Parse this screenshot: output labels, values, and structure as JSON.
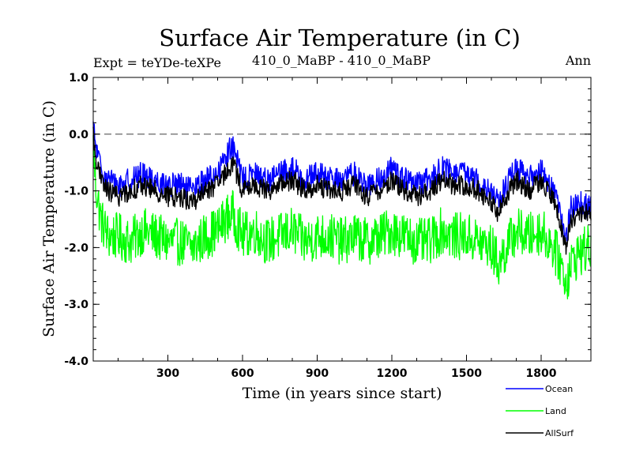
{
  "chart_data": {
    "type": "line",
    "title": "Surface Air Temperature (in C)",
    "subtitle_left": "Expt = teYDe-teXPe",
    "subtitle_center": "410_0_MaBP - 410_0_MaBP",
    "subtitle_right": "Ann",
    "xlabel": "Time (in years since start)",
    "ylabel": "Surface Air Temperature (in C)",
    "xlim": [
      0,
      2000
    ],
    "ylim": [
      -4.0,
      1.0
    ],
    "x_ticks": [
      300,
      600,
      900,
      1200,
      1500,
      1800
    ],
    "x_tick_labels": [
      "300",
      "600",
      "900",
      "1200",
      "1500",
      "1800"
    ],
    "y_ticks": [
      1.0,
      0.0,
      -1.0,
      -2.0,
      -3.0,
      -4.0
    ],
    "y_tick_labels": [
      "1.0",
      "0.0",
      "-1.0",
      "-2.0",
      "-3.0",
      "-4.0"
    ],
    "reference_line": 0.0,
    "legend_position": "bottom-right",
    "series": [
      {
        "name": "Ocean",
        "color": "#0000ff",
        "x": [
          0,
          10,
          30,
          60,
          100,
          150,
          200,
          250,
          300,
          350,
          400,
          450,
          500,
          530,
          560,
          600,
          650,
          700,
          750,
          800,
          850,
          900,
          950,
          1000,
          1050,
          1100,
          1150,
          1200,
          1250,
          1300,
          1350,
          1400,
          1450,
          1500,
          1550,
          1600,
          1630,
          1660,
          1700,
          1750,
          1800,
          1850,
          1880,
          1900,
          1920,
          1950,
          2000
        ],
        "values": [
          0.1,
          -0.2,
          -0.6,
          -0.8,
          -0.9,
          -0.8,
          -0.7,
          -0.8,
          -0.9,
          -0.9,
          -1.0,
          -0.8,
          -0.7,
          -0.4,
          -0.2,
          -0.8,
          -0.7,
          -0.8,
          -0.7,
          -0.6,
          -0.8,
          -0.7,
          -0.8,
          -0.8,
          -0.7,
          -0.9,
          -0.8,
          -0.6,
          -0.8,
          -0.9,
          -0.8,
          -0.6,
          -0.7,
          -0.7,
          -0.8,
          -1.0,
          -1.2,
          -0.9,
          -0.6,
          -0.8,
          -0.6,
          -1.0,
          -1.4,
          -1.9,
          -1.3,
          -1.2,
          -1.3
        ]
      },
      {
        "name": "Land",
        "color": "#00ff00",
        "x": [
          0,
          10,
          30,
          60,
          100,
          150,
          200,
          250,
          300,
          350,
          400,
          450,
          500,
          530,
          560,
          600,
          650,
          700,
          750,
          800,
          850,
          900,
          950,
          1000,
          1050,
          1100,
          1150,
          1200,
          1250,
          1300,
          1350,
          1400,
          1450,
          1500,
          1550,
          1600,
          1630,
          1660,
          1700,
          1750,
          1800,
          1850,
          1880,
          1900,
          1920,
          1950,
          2000
        ],
        "values": [
          -0.2,
          -0.9,
          -1.5,
          -1.8,
          -1.8,
          -1.9,
          -1.7,
          -1.8,
          -1.9,
          -1.9,
          -2.0,
          -1.8,
          -1.7,
          -1.5,
          -1.4,
          -1.8,
          -1.7,
          -1.9,
          -1.8,
          -1.7,
          -1.9,
          -1.8,
          -1.8,
          -1.9,
          -1.8,
          -1.9,
          -1.8,
          -1.7,
          -1.8,
          -1.9,
          -1.9,
          -1.7,
          -1.8,
          -1.8,
          -1.9,
          -2.0,
          -2.3,
          -2.0,
          -1.7,
          -1.8,
          -1.7,
          -2.0,
          -2.3,
          -2.6,
          -2.3,
          -2.1,
          -2.0
        ]
      },
      {
        "name": "AllSurf",
        "color": "#000000",
        "x": [
          0,
          10,
          30,
          60,
          100,
          150,
          200,
          250,
          300,
          350,
          400,
          450,
          500,
          530,
          560,
          600,
          650,
          700,
          750,
          800,
          850,
          900,
          950,
          1000,
          1050,
          1100,
          1150,
          1200,
          1250,
          1300,
          1350,
          1400,
          1450,
          1500,
          1550,
          1600,
          1630,
          1660,
          1700,
          1750,
          1800,
          1850,
          1880,
          1900,
          1920,
          1950,
          2000
        ],
        "values": [
          0.0,
          -0.4,
          -0.8,
          -1.0,
          -1.1,
          -1.0,
          -0.9,
          -1.0,
          -1.1,
          -1.1,
          -1.2,
          -1.0,
          -0.9,
          -0.7,
          -0.5,
          -1.0,
          -0.9,
          -1.0,
          -0.9,
          -0.8,
          -1.0,
          -0.9,
          -1.0,
          -1.0,
          -0.9,
          -1.1,
          -1.0,
          -0.8,
          -1.0,
          -1.1,
          -1.0,
          -0.8,
          -0.9,
          -0.9,
          -1.0,
          -1.2,
          -1.4,
          -1.1,
          -0.8,
          -1.0,
          -0.8,
          -1.2,
          -1.6,
          -2.0,
          -1.5,
          -1.4,
          -1.4
        ]
      }
    ]
  }
}
